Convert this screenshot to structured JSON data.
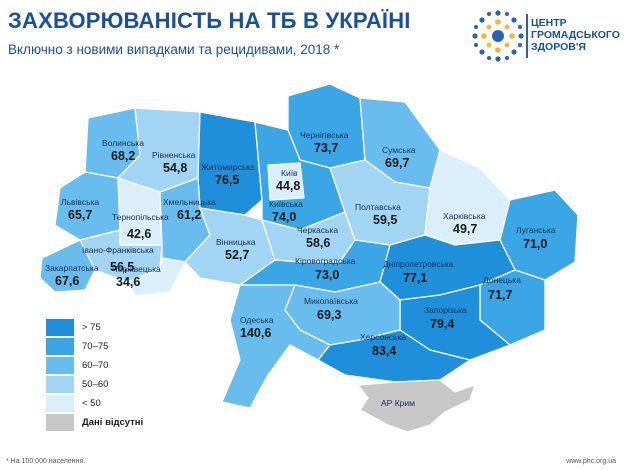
{
  "header": {
    "title": "ЗАХВОРЮВАНІСТЬ НА ТБ В УКРАЇНІ",
    "subtitle": "Включно з новими випадками та рецидивами, 2018 *"
  },
  "logo": {
    "line1": "ЦЕНТР",
    "line2": "ГРОМАДСЬКОГО",
    "line3": "ЗДОРОВ'Я"
  },
  "colors": {
    "gt75": "#1f8fdb",
    "r70_75": "#3aa6e6",
    "r60_70": "#69bdee",
    "r50_60": "#a2d5f4",
    "lt50": "#dbeffb",
    "nodata": "#c7c7c7",
    "title": "#1a4f9c"
  },
  "legend": [
    {
      "label": "> 75",
      "color": "#1f8fdb"
    },
    {
      "label": "70–75",
      "color": "#3aa6e6"
    },
    {
      "label": "60–70",
      "color": "#69bdee"
    },
    {
      "label": "50–60",
      "color": "#a2d5f4"
    },
    {
      "label": "< 50",
      "color": "#dbeffb"
    },
    {
      "label": "Дані відсутні",
      "color": "#c7c7c7"
    }
  ],
  "regions": {
    "volyn": {
      "name": "Волинська",
      "value": "68,2"
    },
    "rivne": {
      "name": "Рівненська",
      "value": "54,8"
    },
    "zhytomyr": {
      "name": "Житомирська",
      "value": "76,5"
    },
    "chernihiv": {
      "name": "Чернігівська",
      "value": "73,7"
    },
    "sumy": {
      "name": "Сумська",
      "value": "69,7"
    },
    "kyiv_city": {
      "name": "Київ",
      "value": "44,8"
    },
    "kyiv": {
      "name": "Київська",
      "value": "74,0"
    },
    "lviv": {
      "name": "Львівська",
      "value": "65,7"
    },
    "ternopil": {
      "name": "Тернопільська",
      "value": "42,6"
    },
    "khmelnytskyi": {
      "name": "Хмельницька",
      "value": "61,2"
    },
    "poltava": {
      "name": "Полтавська",
      "value": "59,5"
    },
    "kharkiv": {
      "name": "Харківська",
      "value": "49,7"
    },
    "luhansk": {
      "name": "Луганська",
      "value": "71,0"
    },
    "cherkasy": {
      "name": "Черкаська",
      "value": "58,6"
    },
    "vinnytsia": {
      "name": "Вінницька",
      "value": "52,7"
    },
    "ivano_frankivsk": {
      "name": "Івано-Франківська",
      "value": "56,5"
    },
    "zakarpattia": {
      "name": "Закарпатська",
      "value": "67,6"
    },
    "chernivtsi": {
      "name": "Чернівецька",
      "value": "34,6"
    },
    "kirovohrad": {
      "name": "Кіровоградська",
      "value": "73,0"
    },
    "dnipropetrovsk": {
      "name": "Дніпропетровська",
      "value": "77,1"
    },
    "donetsk": {
      "name": "Донецька",
      "value": "71,7"
    },
    "odesa": {
      "name": "Одеська",
      "value": "140,6"
    },
    "mykolaiv": {
      "name": "Миколаївська",
      "value": "69,3"
    },
    "zaporizhzhia": {
      "name": "Запорізька",
      "value": "79,4"
    },
    "kherson": {
      "name": "Херсонська",
      "value": "83,4"
    },
    "crimea": {
      "name": "АР Крим",
      "value": ""
    }
  },
  "footer": {
    "footnote": "* На 100 000 населення.",
    "site": "www.phc.org.ua"
  }
}
